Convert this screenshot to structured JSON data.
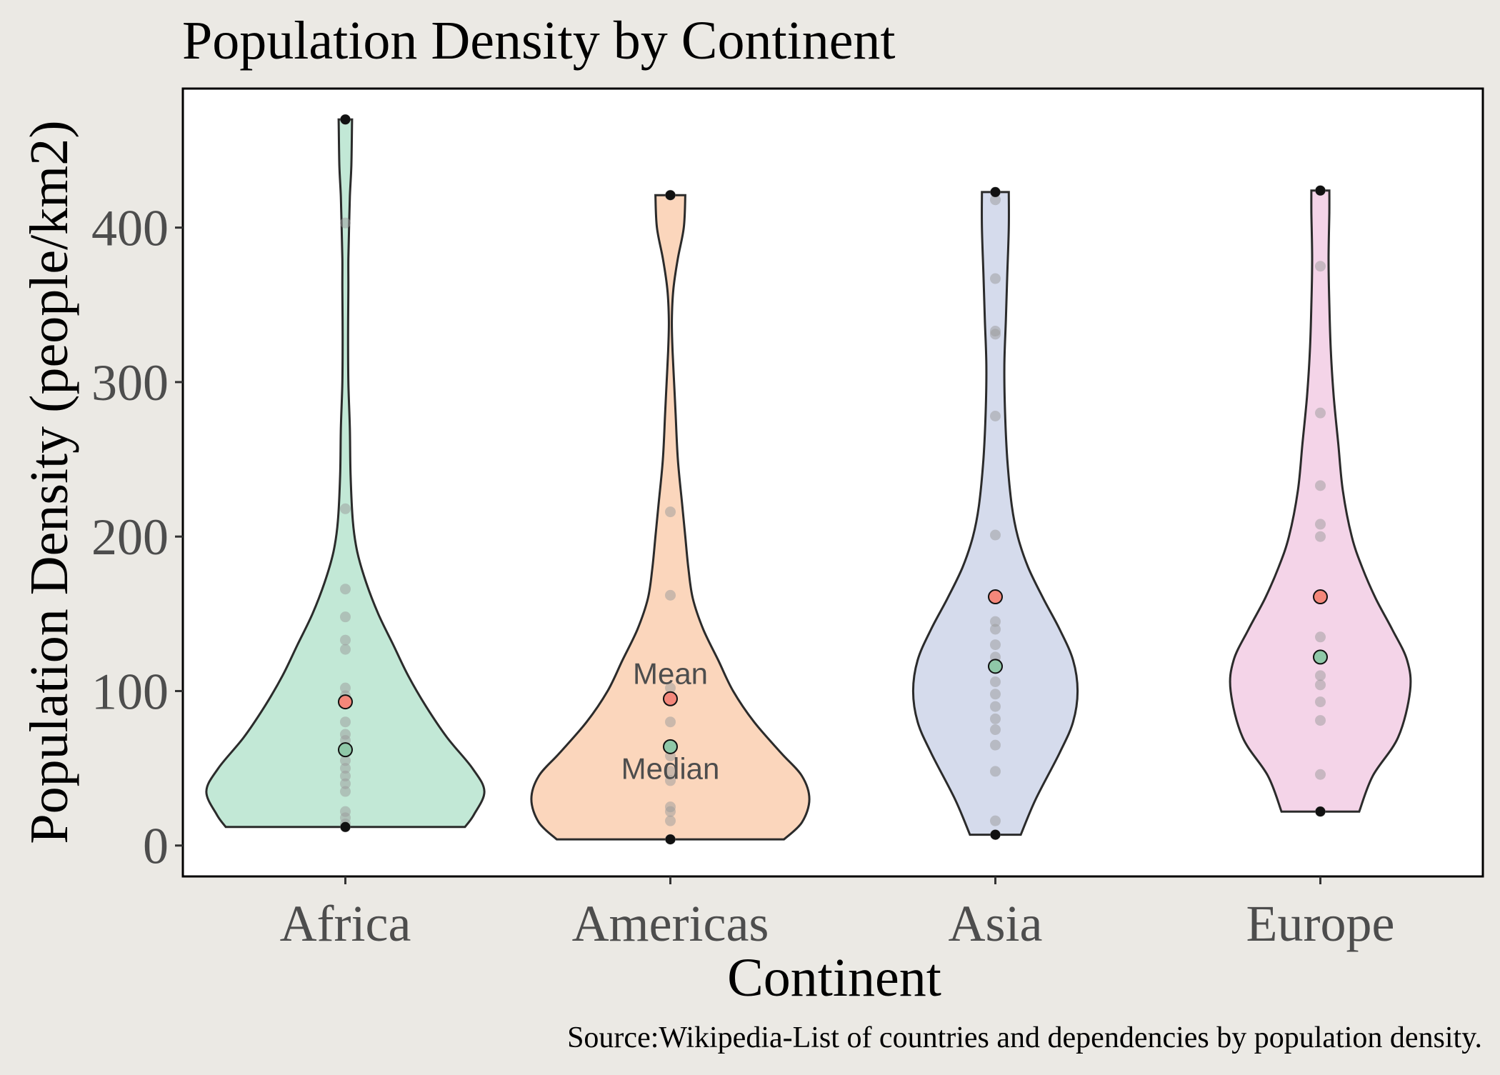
{
  "chart_data": {
    "type": "violin",
    "title": "Population  Density by Continent",
    "xlabel": "Continent",
    "ylabel": "Population Density (people/km2)",
    "caption": "Source:Wikipedia-List of countries and dependencies by population density.",
    "ylim": [
      -20,
      490
    ],
    "yticks": [
      0,
      100,
      200,
      300,
      400
    ],
    "grid": false,
    "categories": [
      "Africa",
      "Americas",
      "Asia",
      "Europe"
    ],
    "colors": {
      "Africa": "#c2e8d6",
      "Americas": "#fbd6bc",
      "Asia": "#d5dbec",
      "Europe": "#f4d4e8",
      "mean_marker": "#f4877a",
      "median_marker": "#8fc8a8",
      "points": "#999999",
      "outline": "#2b2b2b"
    },
    "annotations": {
      "mean": "Mean",
      "median": "Median"
    },
    "series": [
      {
        "category": "Africa",
        "min": 12,
        "max": 470,
        "mean": 93,
        "median": 62,
        "points": [
          12,
          14,
          18,
          22,
          35,
          40,
          45,
          50,
          55,
          62,
          68,
          72,
          80,
          93,
          97,
          102,
          127,
          133,
          148,
          166,
          218,
          403,
          470
        ],
        "density": [
          [
            12,
            0.8
          ],
          [
            20,
            0.86
          ],
          [
            35,
            0.93
          ],
          [
            50,
            0.85
          ],
          [
            70,
            0.68
          ],
          [
            90,
            0.54
          ],
          [
            110,
            0.42
          ],
          [
            130,
            0.32
          ],
          [
            150,
            0.22
          ],
          [
            170,
            0.14
          ],
          [
            190,
            0.08
          ],
          [
            210,
            0.05
          ],
          [
            240,
            0.035
          ],
          [
            270,
            0.03
          ],
          [
            300,
            0.02
          ],
          [
            330,
            0.018
          ],
          [
            360,
            0.02
          ],
          [
            380,
            0.02
          ],
          [
            400,
            0.025
          ],
          [
            420,
            0.03
          ],
          [
            440,
            0.04
          ],
          [
            470,
            0.045
          ]
        ]
      },
      {
        "category": "Americas",
        "min": 4,
        "max": 421,
        "mean": 95,
        "median": 64,
        "points": [
          4,
          16,
          22,
          25,
          42,
          48,
          58,
          64,
          80,
          95,
          102,
          162,
          216,
          421
        ],
        "density": [
          [
            4,
            0.76
          ],
          [
            15,
            0.88
          ],
          [
            30,
            0.93
          ],
          [
            45,
            0.88
          ],
          [
            60,
            0.74
          ],
          [
            80,
            0.56
          ],
          [
            100,
            0.42
          ],
          [
            120,
            0.32
          ],
          [
            140,
            0.22
          ],
          [
            160,
            0.15
          ],
          [
            180,
            0.12
          ],
          [
            200,
            0.1
          ],
          [
            220,
            0.08
          ],
          [
            250,
            0.05
          ],
          [
            280,
            0.035
          ],
          [
            300,
            0.025
          ],
          [
            320,
            0.015
          ],
          [
            340,
            0.01
          ],
          [
            360,
            0.02
          ],
          [
            380,
            0.05
          ],
          [
            400,
            0.09
          ],
          [
            421,
            0.1
          ]
        ]
      },
      {
        "category": "Asia",
        "min": 7,
        "max": 423,
        "mean": 161,
        "median": 116,
        "points": [
          7,
          16,
          48,
          65,
          75,
          82,
          90,
          98,
          106,
          116,
          122,
          130,
          140,
          145,
          161,
          201,
          278,
          331,
          333,
          367,
          418,
          423
        ],
        "density": [
          [
            7,
            0.17
          ],
          [
            30,
            0.27
          ],
          [
            60,
            0.43
          ],
          [
            80,
            0.52
          ],
          [
            100,
            0.55
          ],
          [
            120,
            0.52
          ],
          [
            140,
            0.43
          ],
          [
            160,
            0.32
          ],
          [
            180,
            0.22
          ],
          [
            200,
            0.15
          ],
          [
            220,
            0.11
          ],
          [
            250,
            0.08
          ],
          [
            280,
            0.065
          ],
          [
            310,
            0.06
          ],
          [
            340,
            0.07
          ],
          [
            370,
            0.08
          ],
          [
            400,
            0.09
          ],
          [
            423,
            0.09
          ]
        ]
      },
      {
        "category": "Europe",
        "min": 22,
        "max": 424,
        "mean": 161,
        "median": 122,
        "points": [
          22,
          46,
          81,
          93,
          104,
          110,
          122,
          135,
          161,
          200,
          208,
          233,
          280,
          375,
          424
        ],
        "density": [
          [
            22,
            0.26
          ],
          [
            45,
            0.35
          ],
          [
            70,
            0.52
          ],
          [
            100,
            0.6
          ],
          [
            120,
            0.58
          ],
          [
            140,
            0.48
          ],
          [
            160,
            0.37
          ],
          [
            180,
            0.28
          ],
          [
            200,
            0.21
          ],
          [
            230,
            0.15
          ],
          [
            260,
            0.12
          ],
          [
            290,
            0.09
          ],
          [
            320,
            0.07
          ],
          [
            350,
            0.06
          ],
          [
            380,
            0.055
          ],
          [
            410,
            0.06
          ],
          [
            424,
            0.06
          ]
        ]
      }
    ]
  }
}
